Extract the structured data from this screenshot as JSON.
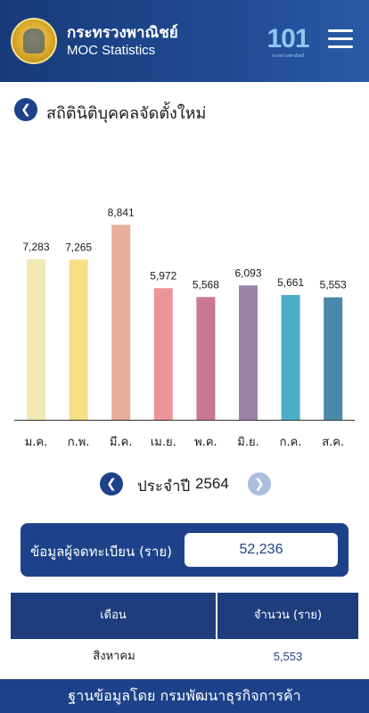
{
  "header": {
    "title": "กระทรวงพาณิชย์",
    "subtitle": "MOC Statistics",
    "logo_text": "101",
    "logo_caption": "กระทรวงพาณิชย์"
  },
  "page": {
    "title": "สถิตินิติบุคคลจัดตั้งใหม่"
  },
  "chart_data": {
    "type": "bar",
    "categories": [
      "ม.ค.",
      "ก.พ.",
      "มี.ค.",
      "เม.ย.",
      "พ.ค.",
      "มิ.ย.",
      "ก.ค.",
      "ส.ค."
    ],
    "values": [
      7283,
      7265,
      8841,
      5972,
      5568,
      6093,
      5661,
      5553
    ],
    "value_labels": [
      "7,283",
      "7,265",
      "8,841",
      "5,972",
      "5,568",
      "6,093",
      "5,661",
      "5,553"
    ],
    "colors": [
      "#f2e8b3",
      "#f8de85",
      "#e8ad9b",
      "#ec9599",
      "#c87890",
      "#9b83a6",
      "#4aaec9",
      "#4a88aa"
    ],
    "ylim": [
      0,
      10500
    ],
    "grid": false,
    "title": "",
    "xlabel": "",
    "ylabel": ""
  },
  "year_selector": {
    "label": "ประจำปี",
    "year": "2564"
  },
  "total": {
    "label": "ข้อมูลผู้จดทะเบียน (ราย)",
    "value": "52,236"
  },
  "table": {
    "headers": [
      "เดือน",
      "จำนวน (ราย)"
    ],
    "rows": [
      [
        "สิงหาคม",
        "5,553"
      ]
    ]
  },
  "footer": {
    "text": "ฐานข้อมูลโดย กรมพัฒนาธุรกิจการค้า"
  }
}
